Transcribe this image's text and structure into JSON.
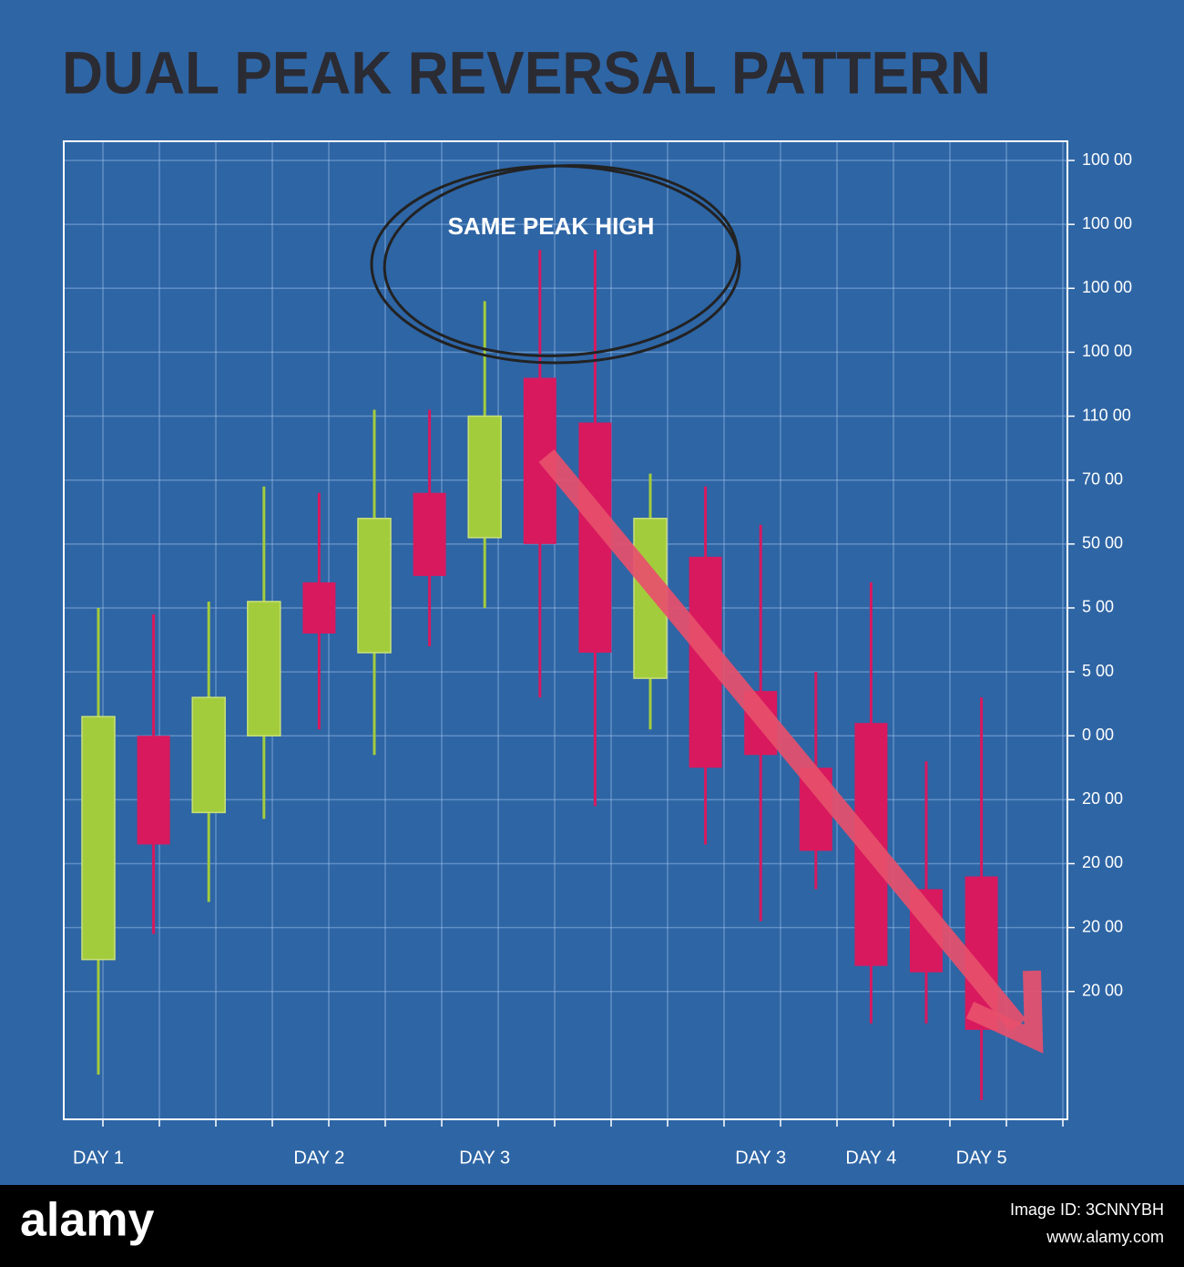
{
  "chart_data": {
    "type": "candlestick",
    "title": "DUAL PEAK REVERSAL PATTERN",
    "annotation": "SAME PEAK HIGH",
    "categories": [
      "DAY 1",
      null,
      null,
      null,
      "DAY 2",
      null,
      null,
      "DAY 3",
      null,
      null,
      null,
      null,
      "DAY 3",
      null,
      "DAY 4",
      null,
      "DAY 5"
    ],
    "open": [
      2.5,
      6.0,
      4.8,
      6.0,
      8.4,
      7.3,
      9.8,
      9.1,
      11.6,
      10.9,
      6.9,
      8.8,
      6.7,
      5.5,
      6.2,
      3.6,
      3.8
    ],
    "high": [
      8.0,
      7.9,
      8.1,
      9.9,
      9.8,
      11.1,
      11.1,
      12.8,
      13.6,
      13.6,
      10.1,
      9.9,
      9.3,
      7.0,
      8.4,
      5.6,
      6.6
    ],
    "low": [
      0.7,
      2.9,
      3.4,
      4.7,
      6.1,
      5.7,
      7.4,
      8.0,
      6.6,
      4.9,
      6.1,
      4.3,
      3.1,
      3.6,
      1.5,
      1.5,
      0.3
    ],
    "close": [
      6.3,
      4.3,
      6.6,
      8.1,
      7.6,
      9.4,
      8.5,
      11.0,
      9.0,
      7.3,
      9.4,
      5.5,
      5.7,
      4.2,
      2.4,
      2.3,
      1.4
    ],
    "up_color": "#a3cc3c",
    "down_color": "#d8195e",
    "arrow_color": "#e8506c",
    "ylim": [
      0,
      15.3
    ],
    "yticks": [
      {
        "value": 15,
        "label": "100 00"
      },
      {
        "value": 14,
        "label": "100 00"
      },
      {
        "value": 13,
        "label": "100 00"
      },
      {
        "value": 12,
        "label": "100 00"
      },
      {
        "value": 11,
        "label": "110 00"
      },
      {
        "value": 10,
        "label": "70 00"
      },
      {
        "value": 9,
        "label": "50 00"
      },
      {
        "value": 8,
        "label": "5 00"
      },
      {
        "value": 7,
        "label": "5 00"
      },
      {
        "value": 6,
        "label": "0 00"
      },
      {
        "value": 5,
        "label": "20 00"
      },
      {
        "value": 4,
        "label": "20 00"
      },
      {
        "value": 3,
        "label": "20 00"
      },
      {
        "value": 2,
        "label": "20 00"
      }
    ],
    "grid": true
  },
  "footer": {
    "brand": "alamy",
    "image_id": "Image ID: 3CNNYBH",
    "url": "www.alamy.com"
  }
}
